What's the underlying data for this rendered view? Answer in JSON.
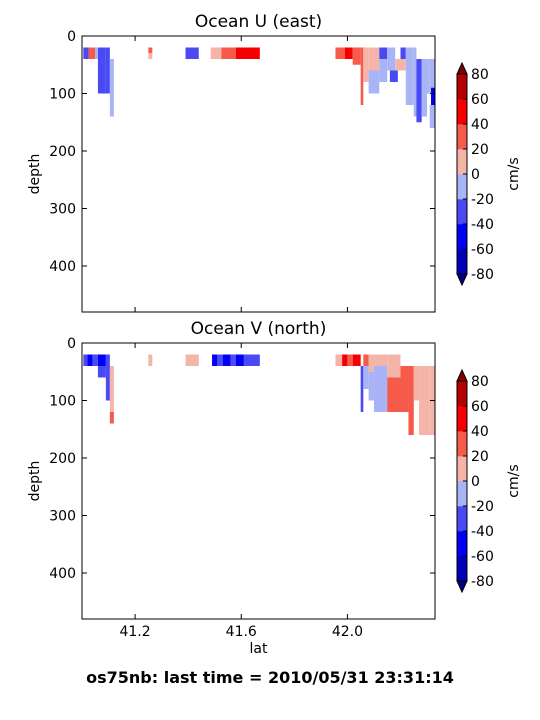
{
  "figure_caption": "os75nb: last time = 2010/05/31 23:31:14",
  "colorbar": {
    "label": "cm/s",
    "ticks": [
      -80,
      -60,
      -40,
      -20,
      0,
      20,
      40,
      60,
      80
    ],
    "levels": [
      -80,
      -60,
      -40,
      -20,
      0,
      20,
      40,
      60,
      80
    ],
    "colors": [
      "#0000b4",
      "#0000f5",
      "#4a4af5",
      "#a8b4f5",
      "#f5b4a8",
      "#f55a4a",
      "#f50000",
      "#b40000"
    ],
    "under_color": "#000080",
    "over_color": "#800000"
  },
  "chart_data": [
    {
      "type": "heatmap",
      "title": "Ocean U (east)",
      "xlabel": "",
      "ylabel": "depth",
      "xlim": [
        41.0,
        42.33
      ],
      "ylim": [
        480,
        0
      ],
      "yticks": [
        0,
        100,
        200,
        300,
        400
      ],
      "xticks": [
        41.2,
        41.6,
        42.0
      ],
      "show_xtick_labels": false,
      "cells": [
        {
          "x": [
            41.005,
            41.025
          ],
          "y": [
            20,
            40
          ],
          "v": -30
        },
        {
          "x": [
            41.025,
            41.05
          ],
          "y": [
            20,
            40
          ],
          "v": 30
        },
        {
          "x": [
            41.05,
            41.06
          ],
          "y": [
            20,
            40
          ],
          "v": -10
        },
        {
          "x": [
            41.06,
            41.09
          ],
          "y": [
            20,
            40
          ],
          "v": -30
        },
        {
          "x": [
            41.06,
            41.09
          ],
          "y": [
            40,
            100
          ],
          "v": -30
        },
        {
          "x": [
            41.09,
            41.105
          ],
          "y": [
            20,
            100
          ],
          "v": -30
        },
        {
          "x": [
            41.105,
            41.12
          ],
          "y": [
            40,
            140
          ],
          "v": -10
        },
        {
          "x": [
            41.25,
            41.265
          ],
          "y": [
            20,
            30
          ],
          "v": 30
        },
        {
          "x": [
            41.25,
            41.265
          ],
          "y": [
            30,
            40
          ],
          "v": 10
        },
        {
          "x": [
            41.39,
            41.44
          ],
          "y": [
            20,
            40
          ],
          "v": -30
        },
        {
          "x": [
            41.485,
            41.525
          ],
          "y": [
            20,
            40
          ],
          "v": 10
        },
        {
          "x": [
            41.525,
            41.58
          ],
          "y": [
            20,
            40
          ],
          "v": 30
        },
        {
          "x": [
            41.58,
            41.67
          ],
          "y": [
            20,
            40
          ],
          "v": 50
        },
        {
          "x": [
            41.955,
            41.99
          ],
          "y": [
            20,
            40
          ],
          "v": 30
        },
        {
          "x": [
            41.99,
            42.02
          ],
          "y": [
            20,
            40
          ],
          "v": 50
        },
        {
          "x": [
            42.02,
            42.05
          ],
          "y": [
            20,
            50
          ],
          "v": 30
        },
        {
          "x": [
            42.05,
            42.06
          ],
          "y": [
            20,
            70
          ],
          "v": 30
        },
        {
          "x": [
            42.05,
            42.06
          ],
          "y": [
            70,
            120
          ],
          "v": 30
        },
        {
          "x": [
            42.06,
            42.08
          ],
          "y": [
            20,
            40
          ],
          "v": 10
        },
        {
          "x": [
            42.06,
            42.08
          ],
          "y": [
            40,
            80
          ],
          "v": 10
        },
        {
          "x": [
            42.08,
            42.12
          ],
          "y": [
            20,
            60
          ],
          "v": 10
        },
        {
          "x": [
            42.08,
            42.12
          ],
          "y": [
            60,
            100
          ],
          "v": -10
        },
        {
          "x": [
            42.12,
            42.15
          ],
          "y": [
            20,
            40
          ],
          "v": -30
        },
        {
          "x": [
            42.12,
            42.15
          ],
          "y": [
            40,
            80
          ],
          "v": -10
        },
        {
          "x": [
            42.15,
            42.18
          ],
          "y": [
            20,
            60
          ],
          "v": -10
        },
        {
          "x": [
            42.16,
            42.19
          ],
          "y": [
            60,
            80
          ],
          "v": -30
        },
        {
          "x": [
            42.18,
            42.2
          ],
          "y": [
            40,
            60
          ],
          "v": 10
        },
        {
          "x": [
            42.2,
            42.22
          ],
          "y": [
            20,
            40
          ],
          "v": -30
        },
        {
          "x": [
            42.2,
            42.22
          ],
          "y": [
            40,
            60
          ],
          "v": 10
        },
        {
          "x": [
            42.22,
            42.25
          ],
          "y": [
            20,
            60
          ],
          "v": -10
        },
        {
          "x": [
            42.22,
            42.25
          ],
          "y": [
            60,
            120
          ],
          "v": -10
        },
        {
          "x": [
            42.25,
            42.26
          ],
          "y": [
            20,
            140
          ],
          "v": -10
        },
        {
          "x": [
            42.26,
            42.28
          ],
          "y": [
            40,
            150
          ],
          "v": -30
        },
        {
          "x": [
            42.28,
            42.3
          ],
          "y": [
            40,
            140
          ],
          "v": -10
        },
        {
          "x": [
            42.3,
            42.31
          ],
          "y": [
            40,
            100
          ],
          "v": -10
        },
        {
          "x": [
            42.31,
            42.33
          ],
          "y": [
            40,
            100
          ],
          "v": -10
        },
        {
          "x": [
            42.315,
            42.33
          ],
          "y": [
            90,
            120
          ],
          "v": -50
        },
        {
          "x": [
            42.31,
            42.33
          ],
          "y": [
            120,
            160
          ],
          "v": -10
        }
      ]
    },
    {
      "type": "heatmap",
      "title": "Ocean V (north)",
      "xlabel": "lat",
      "ylabel": "depth",
      "xlim": [
        41.0,
        42.33
      ],
      "ylim": [
        480,
        0
      ],
      "yticks": [
        0,
        100,
        200,
        300,
        400
      ],
      "xticks": [
        41.2,
        41.6,
        42.0
      ],
      "show_xtick_labels": true,
      "cells": [
        {
          "x": [
            41.005,
            41.02
          ],
          "y": [
            20,
            40
          ],
          "v": -30
        },
        {
          "x": [
            41.02,
            41.04
          ],
          "y": [
            20,
            40
          ],
          "v": -50
        },
        {
          "x": [
            41.04,
            41.06
          ],
          "y": [
            20,
            40
          ],
          "v": -30
        },
        {
          "x": [
            41.06,
            41.09
          ],
          "y": [
            20,
            40
          ],
          "v": -50
        },
        {
          "x": [
            41.06,
            41.09
          ],
          "y": [
            40,
            60
          ],
          "v": -30
        },
        {
          "x": [
            41.09,
            41.105
          ],
          "y": [
            20,
            100
          ],
          "v": -30
        },
        {
          "x": [
            41.105,
            41.12
          ],
          "y": [
            40,
            120
          ],
          "v": 10
        },
        {
          "x": [
            41.105,
            41.12
          ],
          "y": [
            120,
            140
          ],
          "v": 30
        },
        {
          "x": [
            41.25,
            41.265
          ],
          "y": [
            20,
            40
          ],
          "v": 10
        },
        {
          "x": [
            41.39,
            41.44
          ],
          "y": [
            20,
            40
          ],
          "v": 10
        },
        {
          "x": [
            41.49,
            41.51
          ],
          "y": [
            20,
            40
          ],
          "v": -50
        },
        {
          "x": [
            41.51,
            41.53
          ],
          "y": [
            20,
            40
          ],
          "v": -30
        },
        {
          "x": [
            41.53,
            41.56
          ],
          "y": [
            20,
            40
          ],
          "v": -50
        },
        {
          "x": [
            41.56,
            41.58
          ],
          "y": [
            20,
            40
          ],
          "v": -30
        },
        {
          "x": [
            41.58,
            41.61
          ],
          "y": [
            20,
            40
          ],
          "v": -50
        },
        {
          "x": [
            41.61,
            41.67
          ],
          "y": [
            20,
            40
          ],
          "v": -30
        },
        {
          "x": [
            41.955,
            41.98
          ],
          "y": [
            20,
            40
          ],
          "v": 10
        },
        {
          "x": [
            41.98,
            42.0
          ],
          "y": [
            20,
            40
          ],
          "v": 50
        },
        {
          "x": [
            42.0,
            42.02
          ],
          "y": [
            20,
            40
          ],
          "v": 30
        },
        {
          "x": [
            42.02,
            42.05
          ],
          "y": [
            20,
            40
          ],
          "v": 50
        },
        {
          "x": [
            42.05,
            42.06
          ],
          "y": [
            40,
            120
          ],
          "v": -30
        },
        {
          "x": [
            42.06,
            42.08
          ],
          "y": [
            20,
            40
          ],
          "v": 30
        },
        {
          "x": [
            42.06,
            42.08
          ],
          "y": [
            40,
            80
          ],
          "v": -10
        },
        {
          "x": [
            42.08,
            42.1
          ],
          "y": [
            20,
            50
          ],
          "v": 10
        },
        {
          "x": [
            42.08,
            42.1
          ],
          "y": [
            50,
            100
          ],
          "v": -10
        },
        {
          "x": [
            42.1,
            42.15
          ],
          "y": [
            20,
            40
          ],
          "v": 10
        },
        {
          "x": [
            42.1,
            42.15
          ],
          "y": [
            40,
            120
          ],
          "v": -10
        },
        {
          "x": [
            42.15,
            42.2
          ],
          "y": [
            20,
            60
          ],
          "v": 10
        },
        {
          "x": [
            42.15,
            42.2
          ],
          "y": [
            60,
            120
          ],
          "v": 30
        },
        {
          "x": [
            42.2,
            42.23
          ],
          "y": [
            40,
            120
          ],
          "v": 30
        },
        {
          "x": [
            42.23,
            42.25
          ],
          "y": [
            40,
            160
          ],
          "v": 30
        },
        {
          "x": [
            42.25,
            42.27
          ],
          "y": [
            40,
            100
          ],
          "v": 10
        },
        {
          "x": [
            42.27,
            42.31
          ],
          "y": [
            40,
            160
          ],
          "v": 10
        },
        {
          "x": [
            42.31,
            42.33
          ],
          "y": [
            40,
            160
          ],
          "v": 10
        }
      ]
    }
  ]
}
